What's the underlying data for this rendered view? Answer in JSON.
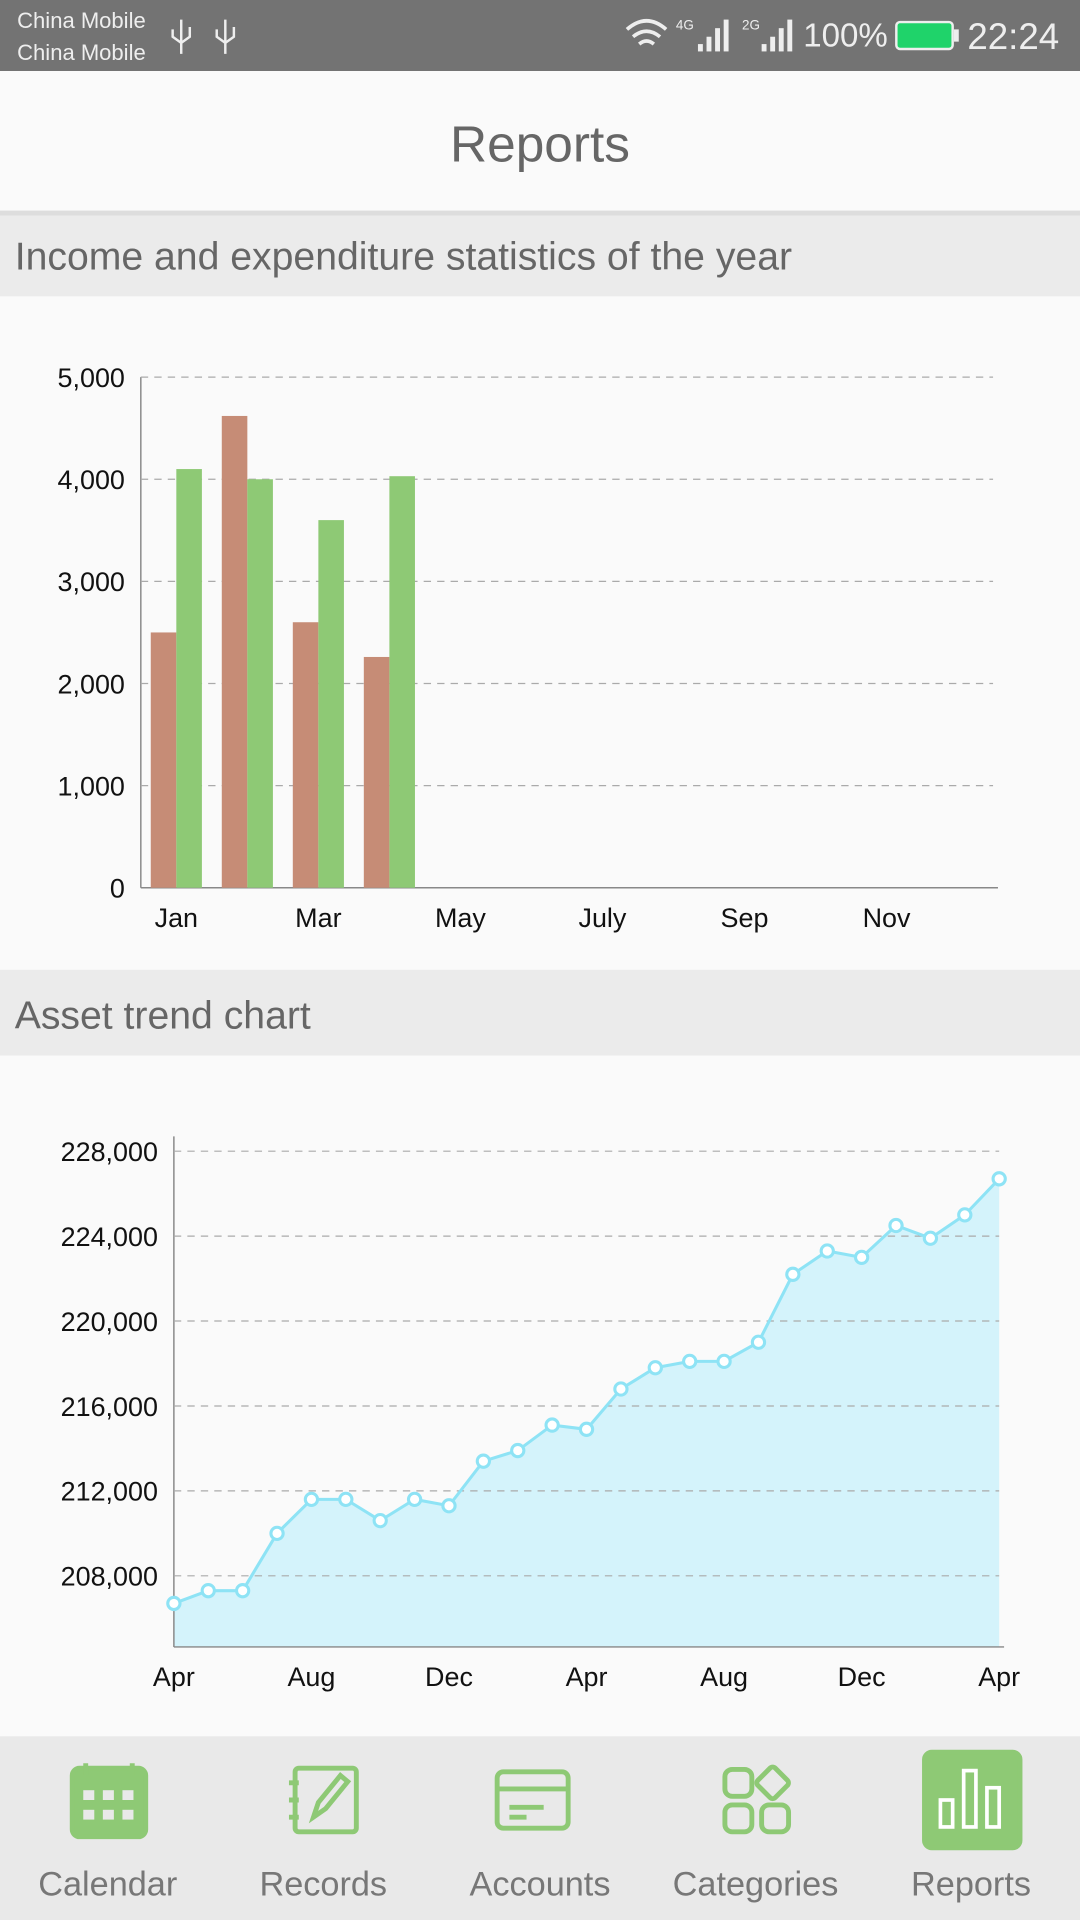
{
  "status_bar": {
    "carrier_1": "China Mobile",
    "carrier_2": "China Mobile",
    "net_1": "4G",
    "net_2": "2G",
    "battery": "100%",
    "time": "22:24"
  },
  "header": {
    "title": "Reports"
  },
  "sections": [
    "Income and expenditure statistics of the year",
    "Asset trend chart"
  ],
  "chart_data": [
    {
      "type": "bar",
      "categories": [
        "Jan",
        null,
        "Mar",
        null,
        "May",
        null,
        "July",
        null,
        "Sep",
        null,
        "Nov",
        null
      ],
      "series": [
        {
          "color": "#c68c76",
          "values": [
            2500,
            4620,
            2600,
            2260,
            null,
            null,
            null,
            null,
            null,
            null,
            null,
            null
          ]
        },
        {
          "color": "#8ec975",
          "values": [
            4100,
            4000,
            3600,
            4030,
            null,
            null,
            null,
            null,
            null,
            null,
            null,
            null
          ]
        }
      ],
      "ylim": [
        0,
        5000
      ],
      "yticks": [
        0,
        {
          "value": 1000,
          "label": "1,000"
        },
        {
          "value": 2000,
          "label": "2,000"
        },
        {
          "value": 3000,
          "label": "3,000"
        },
        {
          "value": 4000,
          "label": "4,000"
        },
        {
          "value": 5000,
          "label": "5,000"
        }
      ],
      "grid": true
    },
    {
      "type": "area",
      "categories": [
        "Apr",
        null,
        null,
        null,
        "Aug",
        null,
        null,
        null,
        "Dec",
        null,
        null,
        null,
        "Apr",
        null,
        null,
        null,
        "Aug",
        null,
        null,
        null,
        "Dec",
        null,
        null,
        null,
        "Apr"
      ],
      "values": [
        206700,
        207300,
        207300,
        210000,
        211600,
        211600,
        210600,
        211600,
        211300,
        213400,
        213900,
        215100,
        214900,
        216800,
        217800,
        218100,
        218100,
        219000,
        222200,
        223300,
        223000,
        224500,
        223900,
        225000,
        226700
      ],
      "color": "#8ee3f5",
      "fill": "#d4f3fb",
      "ylim": [
        204650,
        228700
      ],
      "yticks": [
        {
          "value": 208000,
          "label": "208,000"
        },
        {
          "value": 212000,
          "label": "212,000"
        },
        {
          "value": 216000,
          "label": "216,000"
        },
        {
          "value": 220000,
          "label": "220,000"
        },
        {
          "value": 224000,
          "label": "224,000"
        },
        {
          "value": 228000,
          "label": "228,000"
        }
      ],
      "grid": true
    }
  ],
  "nav": [
    {
      "label": "Calendar"
    },
    {
      "label": "Records"
    },
    {
      "label": "Accounts"
    },
    {
      "label": "Categories"
    },
    {
      "label": "Reports",
      "active": true
    }
  ]
}
